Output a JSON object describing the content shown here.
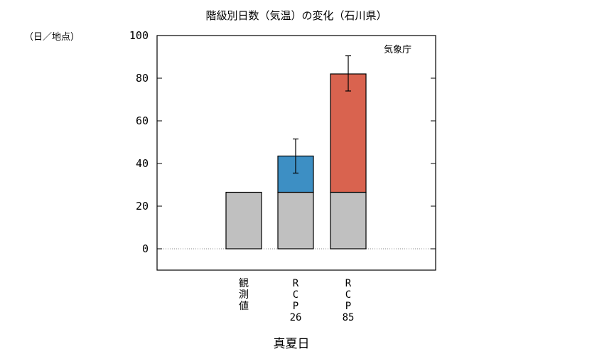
{
  "chart_data": {
    "type": "bar",
    "title": "階級別日数（気温）の変化（石川県）",
    "unit_label": "（日／地点）",
    "credit": "気象庁",
    "xlabel": "真夏日",
    "ylim": [
      -10,
      100
    ],
    "yticks": [
      "0",
      "20",
      "40",
      "60",
      "80",
      "100"
    ],
    "categories": [
      {
        "lines": [
          "観",
          "測",
          "値"
        ]
      },
      {
        "lines": [
          "R",
          "C",
          "P",
          "26"
        ]
      },
      {
        "lines": [
          "R",
          "C",
          "P",
          "85"
        ]
      }
    ],
    "baseline": [
      26.5,
      26.5,
      26.5
    ],
    "increase": [
      0,
      17,
      55.5
    ],
    "error_low": [
      null,
      35.5,
      74
    ],
    "error_high": [
      null,
      51.5,
      90.5
    ],
    "colors": {
      "baseline": "#c0c0c0",
      "increase": [
        "#c0c0c0",
        "#3d8fc4",
        "#d9634f"
      ],
      "zero_line": "#888888"
    }
  }
}
